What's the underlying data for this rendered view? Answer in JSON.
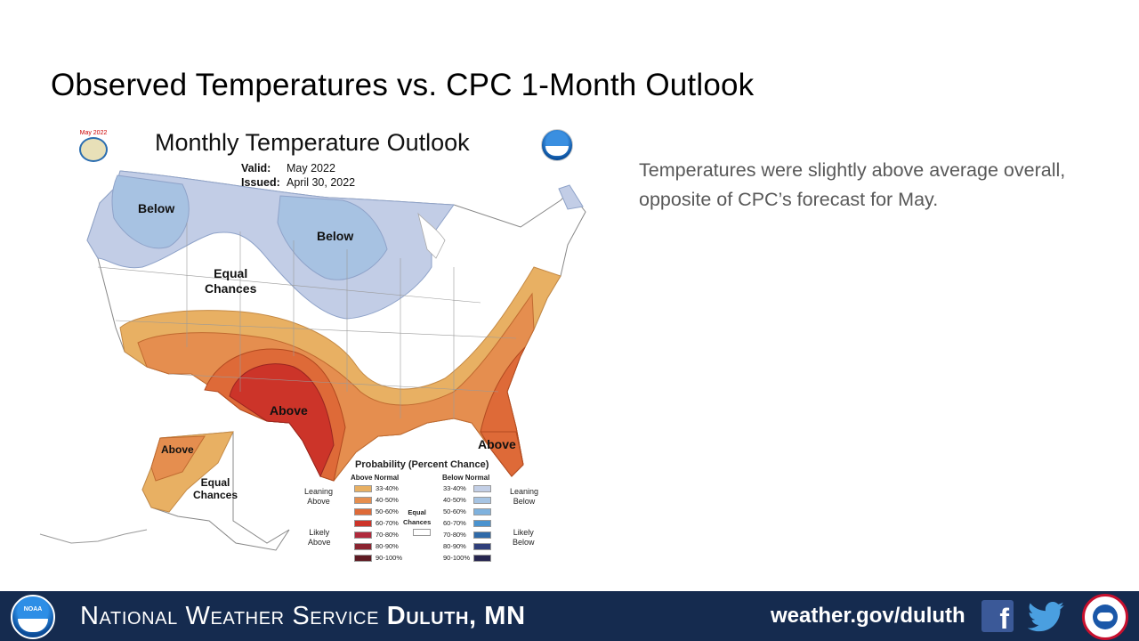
{
  "slide": {
    "title": "Observed Temperatures vs. CPC 1-Month Outlook",
    "description": "Temperatures were slightly above average overall, opposite of CPC’s forecast for May."
  },
  "map": {
    "title": "Monthly Temperature Outlook",
    "seal_year": "May 2022",
    "valid_label": "Valid:",
    "valid_value": "May 2022",
    "issued_label": "Issued:",
    "issued_value": "April 30, 2022",
    "regions": {
      "below_west": "Below",
      "below_north": "Below",
      "equal_west_line1": "Equal",
      "equal_west_line2": "Chances",
      "above_texas": "Above",
      "above_southeast": "Above",
      "above_alaska": "Above",
      "equal_alaska_line1": "Equal",
      "equal_alaska_line2": "Chances"
    },
    "legend": {
      "title": "Probability (Percent Chance)",
      "above_header": "Above Normal",
      "below_header": "Below Normal",
      "equal_line1": "Equal",
      "equal_line2": "Chances",
      "leaning_above_1": "Leaning",
      "leaning_above_2": "Above",
      "likely_above_1": "Likely",
      "likely_above_2": "Above",
      "leaning_below_1": "Leaning",
      "leaning_below_2": "Below",
      "likely_below_1": "Likely",
      "likely_below_2": "Below",
      "ranges": [
        "33-40%",
        "40-50%",
        "50-60%",
        "60-70%",
        "70-80%",
        "80-90%",
        "90-100%"
      ],
      "above_colors": [
        "#e8b063",
        "#e58e4f",
        "#de6a38",
        "#cc3429",
        "#b02a3c",
        "#8a2430",
        "#5e1a22"
      ],
      "below_colors": [
        "#c3cfe6",
        "#a6c4e3",
        "#7fb2de",
        "#4a93cf",
        "#2f6aa8",
        "#2f3f7a",
        "#26254f"
      ]
    }
  },
  "footer": {
    "noaa_text": "NOAA",
    "org_name_light": "National Weather Service",
    "org_name_bold": "Duluth, MN",
    "url": "weather.gov/duluth",
    "facebook_glyph": "f"
  }
}
